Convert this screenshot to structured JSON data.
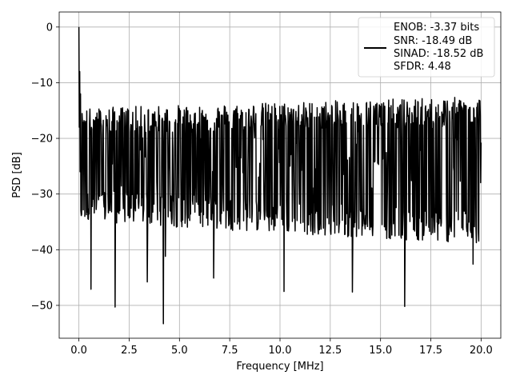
{
  "chart_data": {
    "type": "line",
    "title": "",
    "xlabel": "Frequency [MHz]",
    "ylabel": "PSD [dB]",
    "xlim": [
      -0.98,
      20.98
    ],
    "ylim": [
      -55.9,
      2.7
    ],
    "grid": true,
    "legend_position": "top-right",
    "xticks": [
      0.0,
      2.5,
      5.0,
      7.5,
      10.0,
      12.5,
      15.0,
      17.5,
      20.0
    ],
    "xtick_labels": [
      "0.0",
      "2.5",
      "5.0",
      "7.5",
      "10.0",
      "12.5",
      "15.0",
      "17.5",
      "20.0"
    ],
    "yticks": [
      0,
      -10,
      -20,
      -30,
      -40,
      -50
    ],
    "ytick_labels": [
      "0",
      "−10",
      "−20",
      "−30",
      "−40",
      "−50"
    ],
    "legend_entries": [
      "ENOB: -3.37 bits",
      "SNR: -18.49 dB",
      "SINAD: -18.52 dB",
      "SFDR: 4.48"
    ],
    "series": [
      {
        "color": "#000000",
        "x_range": [
          0,
          20
        ],
        "points": 1024,
        "envelope_upper_db": [
          -16,
          -14
        ],
        "envelope_lower_db": [
          -34,
          -38
        ],
        "typical_floor_db": -22,
        "peak_db": 0.0,
        "dips": [
          {
            "x": 0.6,
            "y": -47.1
          },
          {
            "x": 1.8,
            "y": -50.3
          },
          {
            "x": 3.4,
            "y": -45.8
          },
          {
            "x": 4.2,
            "y": -53.3
          },
          {
            "x": 4.3,
            "y": -41.2
          },
          {
            "x": 6.7,
            "y": -45.1
          },
          {
            "x": 10.2,
            "y": -47.5
          },
          {
            "x": 13.6,
            "y": -47.6
          },
          {
            "x": 16.2,
            "y": -50.2
          },
          {
            "x": 19.6,
            "y": -42.6
          }
        ]
      }
    ]
  }
}
